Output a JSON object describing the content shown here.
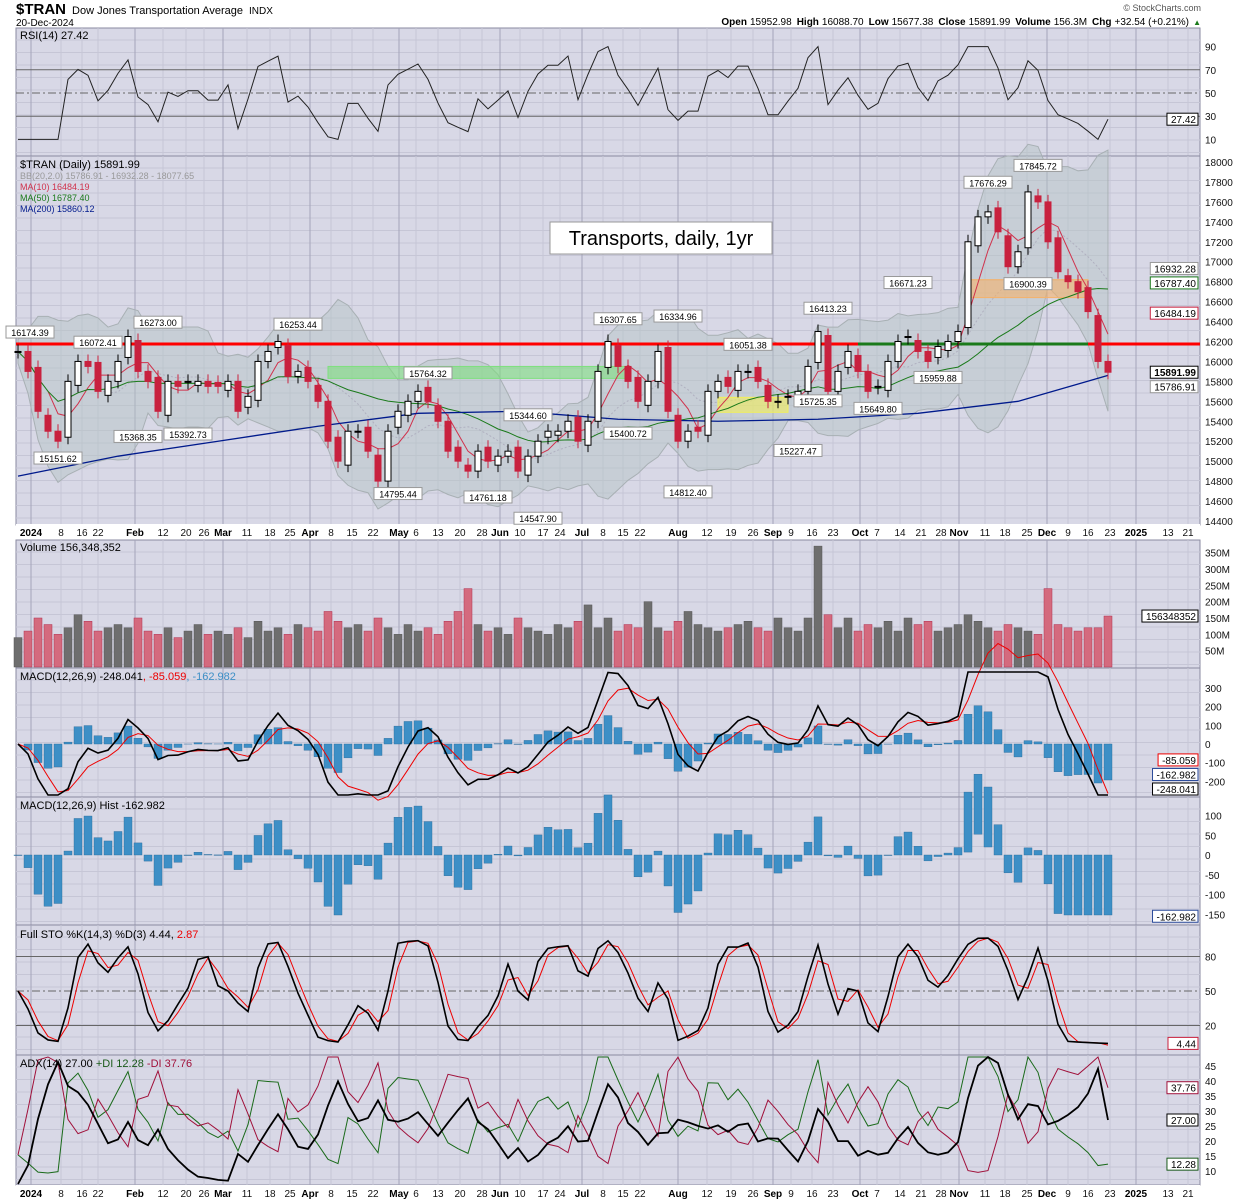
{
  "header": {
    "symbol": "$TRAN",
    "name": "Dow Jones Transportation Average",
    "exchange": "INDX",
    "date": "20-Dec-2024",
    "copyright": "© StockCharts.com",
    "open_label": "Open",
    "open": "15952.98",
    "high_label": "High",
    "high": "16088.70",
    "low_label": "Low",
    "low": "15677.38",
    "close_label": "Close",
    "close": "15891.99",
    "volume_label": "Volume",
    "volume": "156.3M",
    "chg_label": "Chg",
    "chg": "+32.54 (+0.21%)",
    "up_arrow": "▲"
  },
  "colors": {
    "panel_bg": "#d8d8e6",
    "down": "#c8213e",
    "up": "#ffffff",
    "ma10": "#d0324c",
    "ma50": "#1a7a1a",
    "ma200": "#001a8c",
    "resistance": "#ff0000",
    "macd_hist": "#3d8fc6"
  },
  "panels": {
    "rsi": {
      "legend": "RSI(14) 27.42",
      "ticks": [
        "90",
        "70",
        "50",
        "30",
        "10"
      ],
      "tick_values": [
        90,
        70,
        50,
        30,
        10
      ],
      "tag": "27.42"
    },
    "price": {
      "legend": "$TRAN (Daily) 15891.99",
      "bb": "BB(20,2.0) 15786.91 - 16932.28 - 18077.65",
      "ma10": "MA(10) 16484.19",
      "ma50": "MA(50) 16787.40",
      "ma200": "MA(200) 15860.12",
      "ticks": [
        "18000",
        "17800",
        "17600",
        "17400",
        "17200",
        "17000",
        "16800",
        "16600",
        "16400",
        "16200",
        "16000",
        "15800",
        "15600",
        "15400",
        "15200",
        "15000",
        "14800",
        "14600",
        "14400"
      ],
      "tags": [
        {
          "text": "16932.28",
          "value": 16932.28,
          "kind": "bb"
        },
        {
          "text": "16787.40",
          "value": 16787.4,
          "kind": "ma50"
        },
        {
          "text": "16484.19",
          "value": 16484.19,
          "kind": "ma10"
        },
        {
          "text": "15891.99",
          "value": 15891.99,
          "kind": "close"
        },
        {
          "text": "15786.91",
          "value": 15786.91,
          "kind": "bb"
        }
      ],
      "annotation_title": "Transports, daily, 1yr"
    },
    "volume": {
      "legend": "Volume 156,348,352",
      "ticks": [
        "350M",
        "300M",
        "250M",
        "200M",
        "150M",
        "100M",
        "50M"
      ],
      "tick_values": [
        350,
        300,
        250,
        200,
        150,
        100,
        50
      ],
      "tag": "156348352"
    },
    "macd": {
      "legend_main": "MACD(12,26,9) -248.041",
      "legend_signal": ", -85.059",
      "legend_hist": ", -162.982",
      "ticks": [
        "300",
        "200",
        "100",
        "0",
        "-100",
        "-200"
      ],
      "tick_values": [
        300,
        200,
        100,
        0,
        -100,
        -200
      ],
      "tags": [
        {
          "text": "-85.059",
          "value": -85.059,
          "kind": "signal"
        },
        {
          "text": "-162.982",
          "value": -162.982,
          "kind": "hist"
        },
        {
          "text": "-248.041",
          "value": -248.041,
          "kind": "macd"
        }
      ]
    },
    "hist": {
      "legend": "MACD(12,26,9) Hist -162.982",
      "ticks": [
        "100",
        "50",
        "0",
        "-50",
        "-100",
        "-150"
      ],
      "tick_values": [
        100,
        50,
        0,
        -50,
        -100,
        -150
      ],
      "tag": "-162.982"
    },
    "sto": {
      "legend_main": "Full STO %K(14,3) %D(3) 4.44,",
      "legend_d": " 2.87",
      "ticks": [
        "80",
        "50",
        "20"
      ],
      "tick_values": [
        80,
        50,
        20
      ],
      "tag": "4.44"
    },
    "adx": {
      "legend_main": "ADX(14) 27.00",
      "legend_pdi": " +DI 12.28",
      "legend_mdi": " -DI 37.76",
      "ticks": [
        "45",
        "40",
        "35",
        "30",
        "25",
        "20",
        "15",
        "10"
      ],
      "tick_values": [
        45,
        40,
        35,
        30,
        25,
        20,
        15,
        10
      ],
      "tags": [
        {
          "text": "37.76",
          "value": 37.76,
          "kind": "mdi"
        },
        {
          "text": "27.00",
          "value": 27,
          "kind": "adx"
        },
        {
          "text": "12.28",
          "value": 12.28,
          "kind": "pdi"
        }
      ]
    }
  },
  "xaxis": [
    {
      "l": "2024",
      "m": true
    },
    {
      "l": "8"
    },
    {
      "l": "16"
    },
    {
      "l": "22"
    },
    {
      "l": "Feb",
      "m": true
    },
    {
      "l": "12"
    },
    {
      "l": "20"
    },
    {
      "l": "26"
    },
    {
      "l": "Mar",
      "m": true
    },
    {
      "l": "11"
    },
    {
      "l": "18"
    },
    {
      "l": "25"
    },
    {
      "l": "Apr",
      "m": true
    },
    {
      "l": "8"
    },
    {
      "l": "15"
    },
    {
      "l": "22"
    },
    {
      "l": "May",
      "m": true
    },
    {
      "l": "6"
    },
    {
      "l": "13"
    },
    {
      "l": "20"
    },
    {
      "l": "28"
    },
    {
      "l": "Jun",
      "m": true
    },
    {
      "l": "10"
    },
    {
      "l": "17"
    },
    {
      "l": "24"
    },
    {
      "l": "Jul",
      "m": true
    },
    {
      "l": "8"
    },
    {
      "l": "15"
    },
    {
      "l": "22"
    },
    {
      "l": "Aug",
      "m": true
    },
    {
      "l": "12"
    },
    {
      "l": "19"
    },
    {
      "l": "26"
    },
    {
      "l": "Sep",
      "m": true
    },
    {
      "l": "9"
    },
    {
      "l": "16"
    },
    {
      "l": "23"
    },
    {
      "l": "Oct",
      "m": true
    },
    {
      "l": "7"
    },
    {
      "l": "14"
    },
    {
      "l": "21"
    },
    {
      "l": "28"
    },
    {
      "l": "Nov",
      "m": true
    },
    {
      "l": "11"
    },
    {
      "l": "18"
    },
    {
      "l": "25"
    },
    {
      "l": "Dec",
      "m": true
    },
    {
      "l": "9"
    },
    {
      "l": "16"
    },
    {
      "l": "23"
    },
    {
      "l": "2025",
      "m": true
    },
    {
      "l": "13"
    },
    {
      "l": "21"
    }
  ],
  "chart_data": {
    "type": "candlestick",
    "title": "$TRAN Dow Jones Transportation Average (Daily), 1yr",
    "ylim": [
      14400,
      18000
    ],
    "resistance_level": 16174.39,
    "closes": [
      16100,
      15900,
      15500,
      15300,
      15200,
      15800,
      16000,
      15950,
      15700,
      15800,
      16000,
      16250,
      15900,
      15800,
      15500,
      15800,
      15750,
      15800,
      15800,
      15750,
      15750,
      15800,
      15500,
      15650,
      16000,
      16100,
      16200,
      15850,
      15900,
      15800,
      15600,
      15200,
      15000,
      15300,
      15300,
      15100,
      14800,
      15300,
      15500,
      15600,
      15700,
      15600,
      15400,
      15100,
      15000,
      14900,
      15100,
      15000,
      15050,
      15100,
      14900,
      15050,
      15200,
      15300,
      15300,
      15400,
      15200,
      15400,
      15900,
      16200,
      15950,
      15800,
      15600,
      15800,
      16100,
      15500,
      15200,
      15300,
      15300,
      15700,
      15800,
      15750,
      15900,
      15900,
      15800,
      15600,
      15600,
      15650,
      15700,
      15950,
      16300,
      15700,
      15900,
      16100,
      15900,
      15700,
      15750,
      16000,
      16200,
      16250,
      16100,
      16000,
      16150,
      16200,
      16300,
      17200,
      17450,
      17500,
      17300,
      16950,
      17100,
      17700,
      17600,
      17200,
      16900,
      16800,
      16700,
      16500,
      16000,
      15892
    ],
    "volumes_m": [
      90,
      110,
      150,
      130,
      100,
      120,
      160,
      140,
      110,
      120,
      130,
      120,
      150,
      110,
      100,
      120,
      90,
      110,
      130,
      100,
      110,
      100,
      120,
      90,
      140,
      110,
      120,
      100,
      130,
      120,
      110,
      170,
      140,
      120,
      130,
      110,
      150,
      120,
      100,
      130,
      110,
      120,
      100,
      140,
      170,
      240,
      130,
      110,
      120,
      100,
      150,
      120,
      110,
      100,
      130,
      120,
      140,
      190,
      120,
      150,
      110,
      130,
      120,
      200,
      120,
      110,
      140,
      170,
      130,
      120,
      110,
      120,
      130,
      140,
      120,
      110,
      150,
      120,
      110,
      150,
      370,
      160,
      120,
      150,
      110,
      130,
      120,
      140,
      110,
      150,
      130,
      140,
      110,
      120,
      130,
      160,
      140,
      120,
      110,
      130,
      120,
      110,
      100,
      240,
      130,
      120,
      110,
      120,
      120,
      156
    ],
    "ma200_every10": [
      14850,
      15050,
      15200,
      15350,
      15480,
      15500,
      15420,
      15400,
      15420,
      15480,
      15600,
      15860
    ],
    "annotations": [
      {
        "i": 0,
        "text": "16174.39",
        "value": 16174.39,
        "pos": "above"
      },
      {
        "i": 8,
        "text": "16072.41",
        "value": 16072.41,
        "pos": "above"
      },
      {
        "i": 4,
        "text": "15151.62",
        "value": 15151.62,
        "pos": "below"
      },
      {
        "i": 12,
        "text": "15368.35",
        "value": 15368.35,
        "pos": "below"
      },
      {
        "i": 14,
        "text": "16273.00",
        "value": 16273.0,
        "pos": "above"
      },
      {
        "i": 17,
        "text": "15392.73",
        "value": 15392.73,
        "pos": "below"
      },
      {
        "i": 28,
        "text": "16253.44",
        "value": 16253.44,
        "pos": "above"
      },
      {
        "i": 38,
        "text": "14795.44",
        "value": 14795.44,
        "pos": "below"
      },
      {
        "i": 41,
        "text": "15764.32",
        "value": 15764.32,
        "pos": "above"
      },
      {
        "i": 47,
        "text": "14761.18",
        "value": 14761.18,
        "pos": "below"
      },
      {
        "i": 51,
        "text": "15344.60",
        "value": 15344.6,
        "pos": "above"
      },
      {
        "i": 52,
        "text": "14547.90",
        "value": 14547.9,
        "pos": "below"
      },
      {
        "i": 60,
        "text": "16307.65",
        "value": 16307.65,
        "pos": "above"
      },
      {
        "i": 61,
        "text": "15400.72",
        "value": 15400.72,
        "pos": "below"
      },
      {
        "i": 66,
        "text": "16334.96",
        "value": 16334.96,
        "pos": "above"
      },
      {
        "i": 67,
        "text": "14812.40",
        "value": 14812.4,
        "pos": "below"
      },
      {
        "i": 73,
        "text": "16051.38",
        "value": 16051.38,
        "pos": "above"
      },
      {
        "i": 78,
        "text": "15227.47",
        "value": 15227.47,
        "pos": "below"
      },
      {
        "i": 80,
        "text": "15725.35",
        "value": 15725.35,
        "pos": "below"
      },
      {
        "i": 81,
        "text": "16413.23",
        "value": 16413.23,
        "pos": "above"
      },
      {
        "i": 86,
        "text": "15649.80",
        "value": 15649.8,
        "pos": "below"
      },
      {
        "i": 89,
        "text": "16671.23",
        "value": 16671.23,
        "pos": "above"
      },
      {
        "i": 92,
        "text": "15959.88",
        "value": 15959.88,
        "pos": "below"
      },
      {
        "i": 97,
        "text": "17676.29",
        "value": 17676.29,
        "pos": "above"
      },
      {
        "i": 101,
        "text": "16900.39",
        "value": 16900.39,
        "pos": "below"
      },
      {
        "i": 102,
        "text": "17845.72",
        "value": 17845.72,
        "pos": "above"
      }
    ],
    "zones": [
      {
        "name": "green-zone",
        "from_i": 31,
        "to_i": 61,
        "low": 15830,
        "high": 15950,
        "color": "#7ee07e"
      },
      {
        "name": "yellow-zone",
        "from_i": 70,
        "to_i": 77,
        "low": 15490,
        "high": 15640,
        "color": "#f2ef5a"
      },
      {
        "name": "orange-zone",
        "from_i": 95,
        "to_i": 107,
        "low": 16640,
        "high": 16820,
        "color": "#f5b26a"
      }
    ]
  }
}
